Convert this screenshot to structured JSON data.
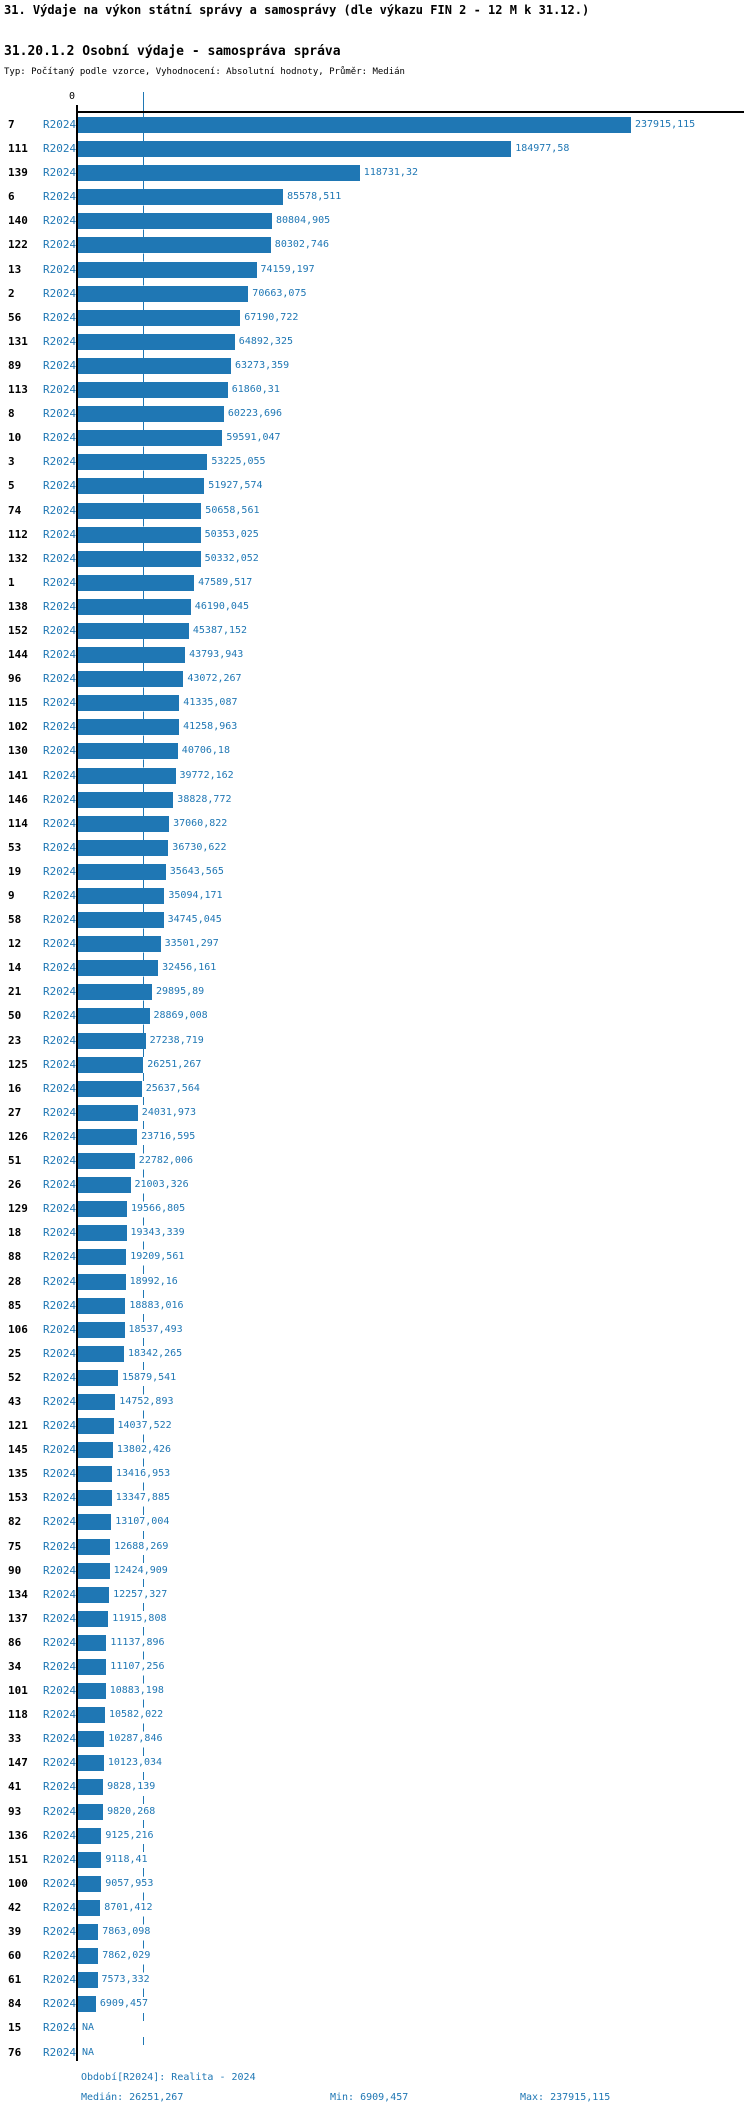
{
  "header": {
    "title": "31. Výdaje na výkon státní správy a samosprávy (dle výkazu FIN 2 - 12 M k 31.12.)",
    "subtitle": "31.20.1.2 Osobní výdaje - samospráva správa",
    "type_line": "Typ: Počítaný podle vzorce, Vyhodnocení: Absolutní hodnoty, Průměr: Medián"
  },
  "chart_data": {
    "type": "bar",
    "orientation": "horizontal",
    "title": "31.20.1.2 Osobní výdaje - samospráva správa",
    "period_label": "R2024",
    "na_label": "NA",
    "axis_zero_label": "0",
    "bar_color": "#1f77b4",
    "value_label_color": "#1f77b4",
    "median_value": 26251.267,
    "xlim": [
      0,
      237915.115
    ],
    "categories": [
      "7",
      "111",
      "139",
      "6",
      "140",
      "122",
      "13",
      "2",
      "56",
      "131",
      "89",
      "113",
      "8",
      "10",
      "3",
      "5",
      "74",
      "112",
      "132",
      "1",
      "138",
      "152",
      "144",
      "96",
      "115",
      "102",
      "130",
      "141",
      "146",
      "114",
      "53",
      "19",
      "9",
      "58",
      "12",
      "14",
      "21",
      "50",
      "23",
      "125",
      "16",
      "27",
      "126",
      "51",
      "26",
      "129",
      "18",
      "88",
      "28",
      "85",
      "106",
      "25",
      "52",
      "43",
      "121",
      "145",
      "135",
      "153",
      "82",
      "75",
      "90",
      "134",
      "137",
      "86",
      "34",
      "101",
      "118",
      "33",
      "147",
      "41",
      "93",
      "136",
      "151",
      "100",
      "42",
      "39",
      "60",
      "61",
      "84",
      "15",
      "76"
    ],
    "values": [
      237915.115,
      184977.58,
      118731.32,
      85578.511,
      80804.905,
      80302.746,
      74159.197,
      70663.075,
      67190.722,
      64892.325,
      63273.359,
      61860.31,
      60223.696,
      59591.047,
      53225.055,
      51927.574,
      50658.561,
      50353.025,
      50332.052,
      47589.517,
      46190.045,
      45387.152,
      43793.943,
      43072.267,
      41335.087,
      41258.963,
      40706.18,
      39772.162,
      38828.772,
      37060.822,
      36730.622,
      35643.565,
      35094.171,
      34745.045,
      33501.297,
      32456.161,
      29895.89,
      28869.008,
      27238.719,
      26251.267,
      25637.564,
      24031.973,
      23716.595,
      22782.006,
      21003.326,
      19566.805,
      19343.339,
      19209.561,
      18992.16,
      18883.016,
      18537.493,
      18342.265,
      15879.541,
      14752.893,
      14037.522,
      13802.426,
      13416.953,
      13347.885,
      13107.004,
      12688.269,
      12424.909,
      12257.327,
      11915.808,
      11137.896,
      11107.256,
      10883.198,
      10582.022,
      10287.846,
      10123.034,
      9828.139,
      9820.268,
      9125.216,
      9118.41,
      9057.953,
      8701.412,
      7863.098,
      7862.029,
      7573.332,
      6909.457,
      null,
      null
    ],
    "value_labels": [
      "237915,115",
      "184977,58",
      "118731,32",
      "85578,511",
      "80804,905",
      "80302,746",
      "74159,197",
      "70663,075",
      "67190,722",
      "64892,325",
      "63273,359",
      "61860,31",
      "60223,696",
      "59591,047",
      "53225,055",
      "51927,574",
      "50658,561",
      "50353,025",
      "50332,052",
      "47589,517",
      "46190,045",
      "45387,152",
      "43793,943",
      "43072,267",
      "41335,087",
      "41258,963",
      "40706,18",
      "39772,162",
      "38828,772",
      "37060,822",
      "36730,622",
      "35643,565",
      "35094,171",
      "34745,045",
      "33501,297",
      "32456,161",
      "29895,89",
      "28869,008",
      "27238,719",
      "26251,267",
      "25637,564",
      "24031,973",
      "23716,595",
      "22782,006",
      "21003,326",
      "19566,805",
      "19343,339",
      "19209,561",
      "18992,16",
      "18883,016",
      "18537,493",
      "18342,265",
      "15879,541",
      "14752,893",
      "14037,522",
      "13802,426",
      "13416,953",
      "13347,885",
      "13107,004",
      "12688,269",
      "12424,909",
      "12257,327",
      "11915,808",
      "11137,896",
      "11107,256",
      "10883,198",
      "10582,022",
      "10287,846",
      "10123,034",
      "9828,139",
      "9820,268",
      "9125,216",
      "9118,41",
      "9057,953",
      "8701,412",
      "7863,098",
      "7862,029",
      "7573,332",
      "6909,457",
      null,
      null
    ]
  },
  "footer": {
    "period_line": "Období[R2024]: Realita - 2024",
    "median_line": "Medián: 26251,267",
    "min_line": "Min: 6909,457",
    "max_line": "Max: 237915,115"
  }
}
